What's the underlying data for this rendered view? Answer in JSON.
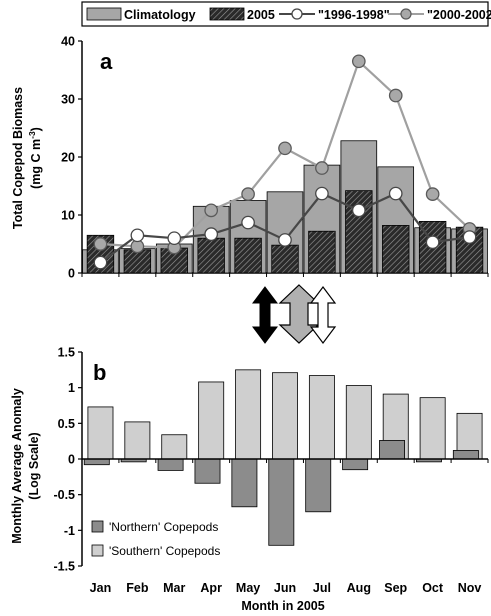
{
  "chart_data": [
    {
      "panel_label": "a",
      "type": "bar",
      "categories": [
        "Jan",
        "Feb",
        "Mar",
        "Apr",
        "May",
        "Jun",
        "Jul",
        "Aug",
        "Sep",
        "Oct",
        "Nov"
      ],
      "ylabel_line1": "Total Copepod Biomass",
      "ylabel_line2_prefix": "(mg C m",
      "ylabel_line2_sup": "-3",
      "ylabel_line2_suffix": ")",
      "ylim": [
        0,
        40
      ],
      "yticks": [
        0,
        10,
        20,
        30,
        40
      ],
      "legend_placement": "top",
      "series": [
        {
          "name": "Climatology",
          "kind": "bar",
          "values": [
            4.0,
            4.2,
            5.0,
            11.5,
            12.5,
            14.0,
            18.6,
            22.8,
            18.3,
            7.8,
            7.6
          ]
        },
        {
          "name": "2005",
          "kind": "bar",
          "values": [
            6.5,
            4.0,
            4.3,
            6.0,
            6.0,
            4.8,
            7.2,
            14.2,
            8.2,
            8.9,
            7.9
          ]
        },
        {
          "name": "\"1996-1998\"",
          "kind": "line",
          "values": [
            1.8,
            6.5,
            6.0,
            6.7,
            8.7,
            5.7,
            13.7,
            10.8,
            13.7,
            5.3,
            6.2
          ]
        },
        {
          "name": "\"2000-2002\"",
          "kind": "line",
          "values": [
            5.0,
            4.6,
            4.4,
            10.8,
            13.6,
            21.5,
            18.1,
            36.5,
            30.6,
            13.6,
            7.6
          ]
        }
      ]
    },
    {
      "panel_label": "b",
      "type": "bar",
      "categories": [
        "Jan",
        "Feb",
        "Mar",
        "Apr",
        "May",
        "Jun",
        "Jul",
        "Aug",
        "Sep",
        "Oct",
        "Nov"
      ],
      "xlabel": "Month in 2005",
      "ylabel_line1": "Monthly Average Anomaly",
      "ylabel_line2": "(Log Scale)",
      "ylim": [
        -1.5,
        1.5
      ],
      "yticks": [
        -1.5,
        -1,
        -0.5,
        0,
        0.5,
        1,
        1.5
      ],
      "ytick_labels": [
        "-1.5",
        "-1",
        "-0.5",
        "0",
        "0.5",
        "1",
        "1.5"
      ],
      "legend_placement": "bottom-left",
      "series": [
        {
          "name": "'Northern' Copepods",
          "values": [
            -0.08,
            -0.04,
            -0.16,
            -0.34,
            -0.67,
            -1.21,
            -0.74,
            -0.15,
            0.26,
            -0.04,
            0.12
          ]
        },
        {
          "name": "'Southern' Copepods",
          "values": [
            0.73,
            0.52,
            0.34,
            1.08,
            1.25,
            1.21,
            1.17,
            1.03,
            0.91,
            0.86,
            0.64
          ]
        }
      ]
    }
  ],
  "colors": {
    "climatology": "#a6a6a6",
    "year2005": "#3a3a3a",
    "line_1996_1998": "#474747",
    "line_2000_2002": "#a0a0a0",
    "northern": "#8c8c8c",
    "southern": "#cfcfcf",
    "arrow_dark": "#000000",
    "arrow_mid": "#b0b0b0",
    "arrow_light": "#ffffff"
  }
}
